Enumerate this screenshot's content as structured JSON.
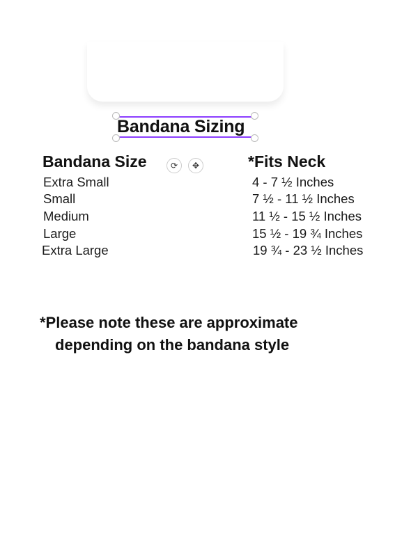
{
  "title": "Bandana Sizing",
  "table": {
    "headers": [
      "Bandana Size",
      "*Fits Neck"
    ],
    "rows": [
      {
        "size": "Extra Small",
        "neck": "4 - 7 ½ Inches"
      },
      {
        "size": "Small",
        "neck": "7 ½ - 11 ½ Inches"
      },
      {
        "size": "Medium",
        "neck": "11 ½ - 15 ½ Inches"
      },
      {
        "size": "Large",
        "neck": "15 ½ - 19 ¾ Inches"
      },
      {
        "size": "Extra Large",
        "neck": "19 ¾ - 23 ½ Inches"
      }
    ]
  },
  "note": {
    "line1": "*Please note  these are approximate",
    "line2": "depending on the bandana style"
  },
  "controls": {
    "rotate_icon": "⟳",
    "move_icon": "✥"
  },
  "colors": {
    "selection": "#8b3dff"
  }
}
